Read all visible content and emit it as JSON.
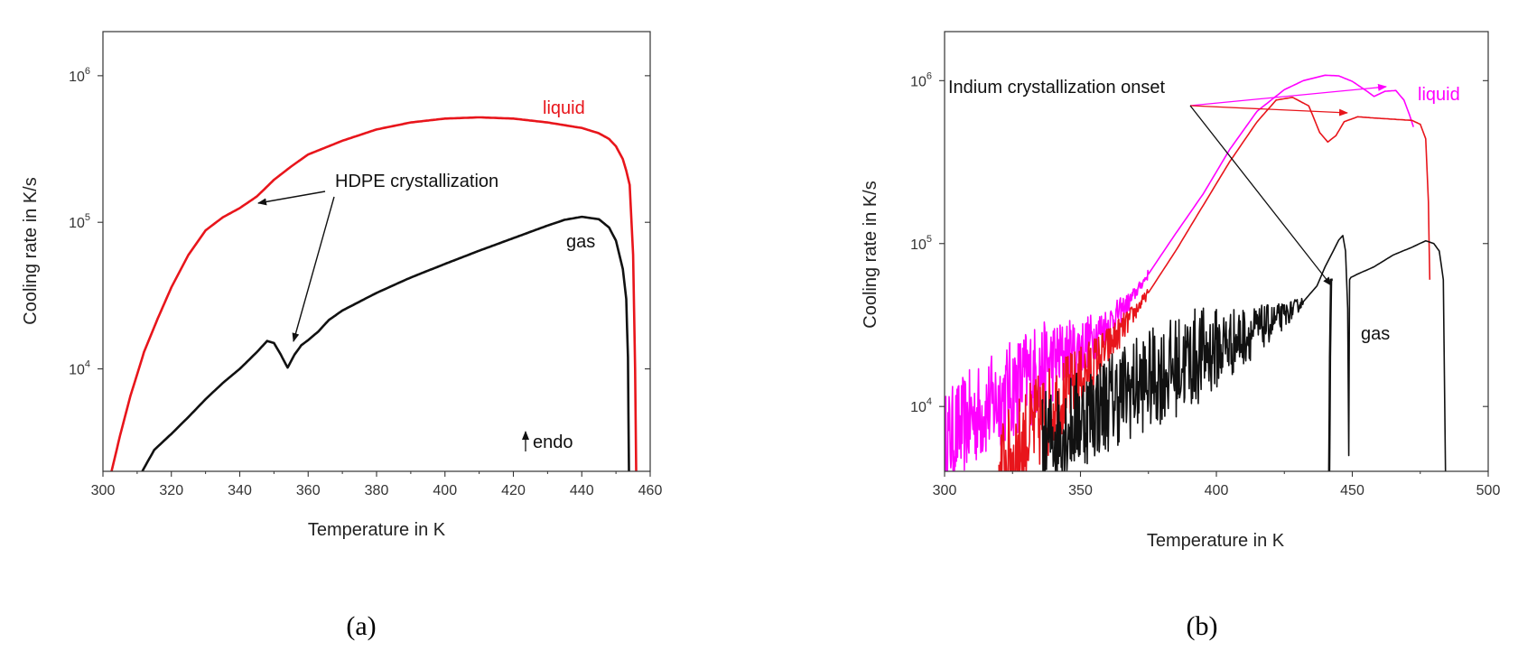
{
  "chart_data": [
    {
      "panel_label": "(a)",
      "type": "line",
      "xlabel": "Temperature in K",
      "ylabel": "Cooling rate in K/s",
      "xlim": [
        300,
        460
      ],
      "ylim": [
        2000,
        2000000
      ],
      "yscale": "log",
      "xticks": [
        300,
        320,
        340,
        360,
        380,
        400,
        420,
        440,
        460
      ],
      "yticks": [
        {
          "value": 10000,
          "base": "10",
          "exp": "4"
        },
        {
          "value": 100000,
          "base": "10",
          "exp": "5"
        },
        {
          "value": 1000000,
          "base": "10",
          "exp": "6"
        }
      ],
      "series": [
        {
          "name": "liquid",
          "color": "#e8151b",
          "x": [
            302.5,
            305,
            308,
            312,
            316,
            320,
            325,
            330,
            335,
            340,
            345,
            350,
            355,
            360,
            370,
            380,
            390,
            400,
            410,
            420,
            430,
            440,
            445,
            448,
            450,
            452,
            453,
            454,
            455,
            455.6,
            455.9
          ],
          "y": [
            2000,
            3500,
            6500,
            13000,
            22000,
            36000,
            60000,
            88000,
            108000,
            125000,
            150000,
            195000,
            240000,
            290000,
            360000,
            430000,
            480000,
            510000,
            520000,
            510000,
            480000,
            440000,
            405000,
            370000,
            330000,
            270000,
            225000,
            180000,
            60000,
            10000,
            2000
          ]
        },
        {
          "name": "gas",
          "color": "#111111",
          "x": [
            311.5,
            315,
            320,
            325,
            330,
            335,
            340,
            345,
            348,
            350,
            352,
            354,
            356,
            358,
            360,
            363,
            366,
            370,
            380,
            390,
            400,
            410,
            420,
            430,
            435,
            440,
            445,
            448,
            450,
            452,
            453,
            453.5,
            453.8
          ],
          "y": [
            2000,
            2800,
            3600,
            4700,
            6200,
            8000,
            10000,
            13000,
            15500,
            15000,
            12500,
            10200,
            12500,
            14500,
            15700,
            18000,
            21500,
            25000,
            33000,
            42000,
            52000,
            64000,
            78000,
            95000,
            104000,
            109000,
            105000,
            92000,
            75000,
            48000,
            30000,
            12000,
            2000
          ]
        }
      ],
      "annotations": [
        {
          "text": "liquid",
          "color": "#e8151b"
        },
        {
          "text": "gas",
          "color": "#111111"
        },
        {
          "text": "HDPE crystallization",
          "color": "#111111",
          "arrows_to": [
            {
              "x": 342,
              "y": 132000
            },
            {
              "x": 355,
              "y": 14500
            }
          ]
        },
        {
          "text": "endo",
          "color": "#111111"
        }
      ]
    },
    {
      "panel_label": "(b)",
      "type": "line",
      "xlabel": "Temperature in K",
      "ylabel": "Cooling rate in K/s",
      "xlim": [
        300,
        500
      ],
      "ylim": [
        4000,
        2000000
      ],
      "yscale": "log",
      "xticks": [
        300,
        350,
        400,
        450,
        500
      ],
      "yticks": [
        {
          "value": 10000,
          "base": "10",
          "exp": "4"
        },
        {
          "value": 100000,
          "base": "10",
          "exp": "5"
        },
        {
          "value": 1000000,
          "base": "10",
          "exp": "6"
        }
      ],
      "series": [
        {
          "name": "magenta",
          "color": "#ff00ff",
          "noisy_until": 372,
          "x": [
            300,
            310,
            320,
            330,
            340,
            350,
            360,
            368,
            375,
            385,
            395,
            405,
            415,
            425,
            432,
            440,
            445,
            450,
            455,
            458,
            462,
            466,
            469,
            471,
            472.5
          ],
          "y": [
            6000,
            8500,
            11000,
            15000,
            19000,
            23000,
            32000,
            44000,
            65000,
            115000,
            200000,
            380000,
            650000,
            880000,
            1000000,
            1080000,
            1070000,
            990000,
            870000,
            800000,
            860000,
            870000,
            760000,
            620000,
            520000
          ]
        },
        {
          "name": "liquid",
          "color": "#e8151b",
          "noisy_until": 374,
          "x": [
            320,
            330,
            340,
            350,
            360,
            368,
            375,
            385,
            395,
            405,
            415,
            422,
            428,
            434,
            438,
            441,
            444,
            447,
            452,
            458,
            465,
            472,
            475,
            477,
            478,
            478.5
          ],
          "y": [
            4000,
            6500,
            10000,
            15000,
            23000,
            34000,
            50000,
            90000,
            170000,
            320000,
            560000,
            760000,
            790000,
            700000,
            480000,
            420000,
            460000,
            560000,
            600000,
            590000,
            580000,
            570000,
            540000,
            440000,
            180000,
            60000
          ]
        },
        {
          "name": "gas",
          "color": "#111111",
          "noisy_until": 432,
          "x": [
            336,
            345,
            355,
            365,
            375,
            385,
            395,
            405,
            415,
            425,
            432,
            437,
            440,
            443,
            445,
            446.5,
            447.5,
            448.3,
            448.7,
            449,
            449.5,
            452,
            458,
            465,
            472,
            477,
            480,
            482,
            483.5,
            484.3
          ],
          "y": [
            6000,
            7500,
            9500,
            12000,
            14500,
            17500,
            21000,
            24500,
            29500,
            36000,
            44000,
            55000,
            72000,
            90000,
            105000,
            112000,
            90000,
            40000,
            5000,
            60000,
            62000,
            65000,
            72000,
            85000,
            95000,
            104000,
            100000,
            90000,
            60000,
            4000
          ]
        },
        {
          "name": "gas-drop",
          "color": "#111111",
          "x": [
            441.5,
            441.8,
            442.2,
            442.8
          ],
          "y": [
            4000,
            20000,
            60000,
            60000
          ]
        }
      ],
      "annotations": [
        {
          "text": "Indium crystallization onset",
          "color": "#111111",
          "arrows_to": [
            {
              "x": 467,
              "y": 880000
            },
            {
              "x": 447,
              "y": 610000
            },
            {
              "x": 442,
              "y": 60000
            }
          ]
        },
        {
          "text": "liquid",
          "color": "#ff00ff"
        },
        {
          "text": "gas",
          "color": "#111111"
        }
      ]
    }
  ]
}
